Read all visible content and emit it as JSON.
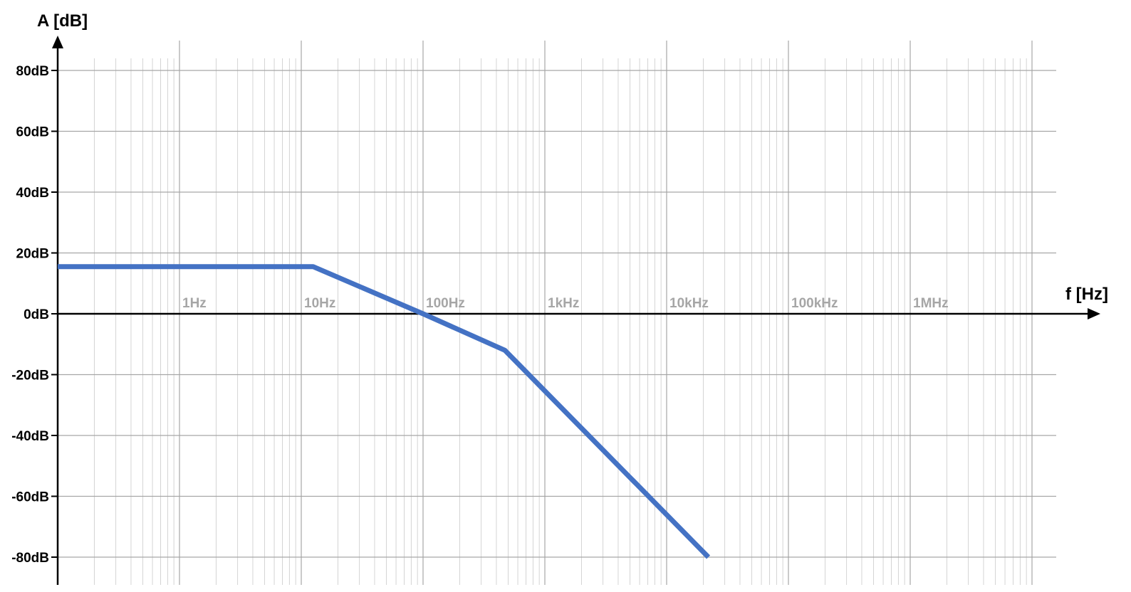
{
  "chart_data": {
    "type": "line",
    "title": "",
    "xlabel": "f [Hz]",
    "ylabel": "A [dB]",
    "x_scale": "log",
    "xlim": [
      0.1,
      10000000
    ],
    "ylim": [
      -80,
      80
    ],
    "grid": true,
    "x_ticks": [
      {
        "value": 1,
        "label": "1Hz"
      },
      {
        "value": 10,
        "label": "10Hz"
      },
      {
        "value": 100,
        "label": "100Hz"
      },
      {
        "value": 1000,
        "label": "1kHz"
      },
      {
        "value": 10000,
        "label": "10kHz"
      },
      {
        "value": 100000,
        "label": "100kHz"
      },
      {
        "value": 1000000,
        "label": "1MHz"
      }
    ],
    "y_ticks": [
      {
        "value": 80,
        "label": "80dB"
      },
      {
        "value": 60,
        "label": "60dB"
      },
      {
        "value": 40,
        "label": "40dB"
      },
      {
        "value": 20,
        "label": "20dB"
      },
      {
        "value": 0,
        "label": "0dB"
      },
      {
        "value": -20,
        "label": "-20dB"
      },
      {
        "value": -40,
        "label": "-40dB"
      },
      {
        "value": -60,
        "label": "-60dB"
      },
      {
        "value": -80,
        "label": "-80dB"
      }
    ],
    "series": [
      {
        "color": "#4472c4",
        "points": [
          {
            "x": 0.1,
            "y": 15.5
          },
          {
            "x": 12.5,
            "y": 15.5
          },
          {
            "x": 100,
            "y": 0
          },
          {
            "x": 470,
            "y": -12
          },
          {
            "x": 22000,
            "y": -80
          }
        ]
      }
    ]
  }
}
